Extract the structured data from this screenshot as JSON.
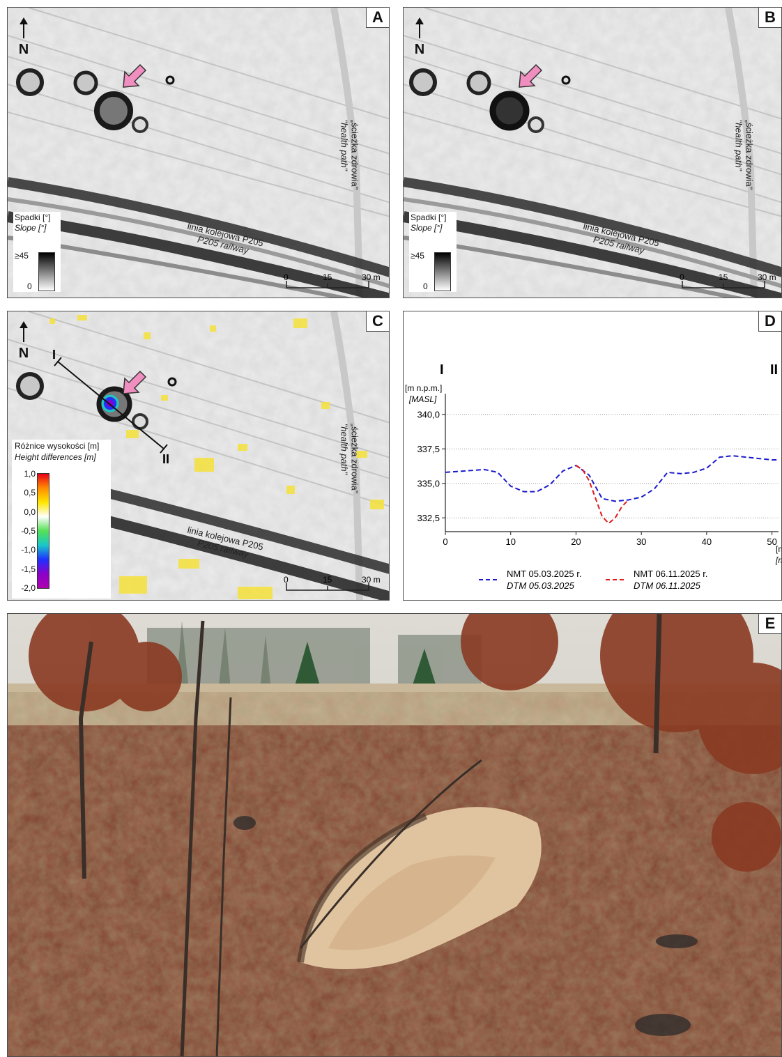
{
  "panels": {
    "A": {
      "label": "A",
      "north": "N",
      "path_label": "„ścieżka zdrowia\"",
      "path_label_en": "\"health path\"",
      "railway_label": "linia kolejowa P205",
      "railway_label_en": "P205 railway",
      "legend": {
        "title": "Spadki [°]",
        "title_en": "Slope [°]",
        "max": "≥45",
        "min": "0"
      },
      "scale": {
        "t0": "0",
        "t1": "15",
        "t2": "30 m"
      }
    },
    "B": {
      "label": "B",
      "north": "N",
      "path_label": "„ścieżka zdrowia\"",
      "path_label_en": "\"health path\"",
      "railway_label": "linia kolejowa P205",
      "railway_label_en": "P205 railway",
      "legend": {
        "title": "Spadki [°]",
        "title_en": "Slope [°]",
        "max": "≥45",
        "min": "0"
      },
      "scale": {
        "t0": "0",
        "t1": "15",
        "t2": "30 m"
      }
    },
    "C": {
      "label": "C",
      "north": "N",
      "profile_start": "I",
      "profile_end": "II",
      "path_label": "„ścieżka zdrowia\"",
      "path_label_en": "\"health path\"",
      "railway_label": "linia kolejowa P205",
      "railway_label_en": "P205 railway",
      "legend": {
        "title": "Różnice wysokości [m]",
        "title_en": "Height differences [m]",
        "ticks": [
          "1,0",
          "0,5",
          "0,0",
          "-0,5",
          "-1,0",
          "-1,5",
          "-2,0"
        ],
        "colors": [
          "#e8001a",
          "#ff8c00",
          "#ffe600",
          "#ffffff",
          "#55e055",
          "#19c8c8",
          "#2030ff",
          "#8a00c8",
          "#b000b0"
        ]
      },
      "scale": {
        "t0": "0",
        "t1": "15",
        "t2": "30 m"
      }
    },
    "D": {
      "label": "D"
    },
    "E": {
      "label": "E"
    }
  },
  "chart_data": {
    "type": "line",
    "start_label": "I",
    "end_label": "II",
    "ylabel": "[m n.p.m.]",
    "ylabel_en": "[MASL]",
    "xlabel": "[m]",
    "xlabel_en": "[m]",
    "xlim": [
      0,
      51
    ],
    "ylim": [
      331.5,
      341.5
    ],
    "xticks": [
      0,
      10,
      20,
      30,
      40,
      50
    ],
    "xtick_labels": [
      "0",
      "10",
      "20",
      "30",
      "40",
      "50"
    ],
    "yticks": [
      332.5,
      335.0,
      337.5,
      340.0
    ],
    "ytick_labels": [
      "332,5",
      "335,0",
      "337,5",
      "340,0"
    ],
    "grid": "horizontal dotted",
    "legend_position": "bottom",
    "series": [
      {
        "name": "NMT 05.03.2025 r.",
        "name_en": "DTM 05.03.2025",
        "color": "#1a1acc",
        "style": "dashed",
        "x": [
          0,
          3,
          6,
          8,
          10,
          12,
          14,
          16,
          18,
          20,
          22,
          24,
          26,
          28,
          30,
          32,
          34,
          36,
          38,
          40,
          42,
          44,
          46,
          48,
          50,
          51
        ],
        "y": [
          335.8,
          335.9,
          336.0,
          335.8,
          334.8,
          334.4,
          334.4,
          334.9,
          335.9,
          336.3,
          335.6,
          333.9,
          333.7,
          333.8,
          334.0,
          334.6,
          335.8,
          335.7,
          335.8,
          336.1,
          336.9,
          337.0,
          336.9,
          336.8,
          336.7,
          336.7
        ]
      },
      {
        "name": "NMT 06.11.2025 r.",
        "name_en": "DTM 06.11.2025",
        "color": "#e01a1a",
        "style": "dashed",
        "x": [
          20,
          21,
          22,
          23,
          24,
          25,
          26,
          27,
          28
        ],
        "y": [
          336.3,
          336.0,
          335.2,
          333.9,
          332.6,
          332.1,
          332.5,
          333.3,
          333.8
        ]
      }
    ]
  }
}
